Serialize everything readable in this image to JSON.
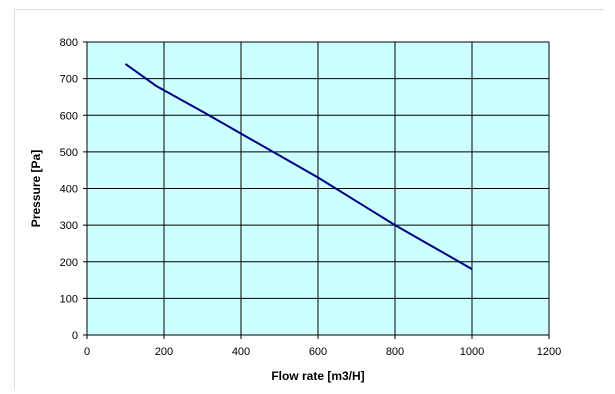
{
  "chart_data": {
    "type": "line",
    "title": "",
    "xlabel": "Flow rate [m3/H]",
    "ylabel": "Pressure [Pa]",
    "xlim": [
      0,
      1200
    ],
    "ylim": [
      0,
      800
    ],
    "x_ticks": [
      0,
      200,
      400,
      600,
      800,
      1000,
      1200
    ],
    "y_ticks": [
      0,
      100,
      200,
      300,
      400,
      500,
      600,
      700,
      800
    ],
    "grid": true,
    "legend": "none",
    "plot_background": "#ccffff",
    "grid_color": "#000000",
    "series": [
      {
        "color": "#000080",
        "x": [
          100,
          180,
          300,
          400,
          500,
          600,
          700,
          800,
          900,
          1000
        ],
        "y": [
          740,
          680,
          610,
          550,
          490,
          430,
          365,
          300,
          240,
          180
        ]
      }
    ]
  }
}
